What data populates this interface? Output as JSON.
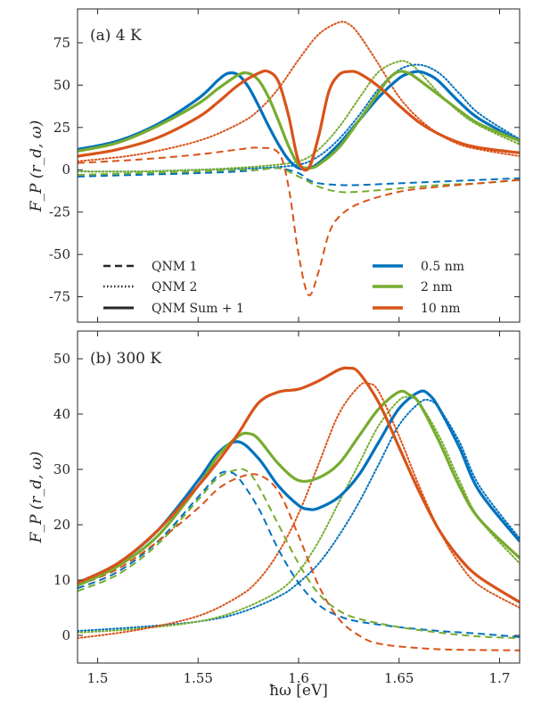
{
  "chart_data": [
    {
      "type": "line",
      "panel_label": "(a) 4 K",
      "ylabel": "F_P (r_d, ω)",
      "xlabel": "",
      "xlim": [
        1.49,
        1.71
      ],
      "ylim": [
        -90,
        95
      ],
      "xticks": [
        1.5,
        1.55,
        1.6,
        1.65,
        1.7
      ],
      "xtick_labels": [
        "",
        "",
        "",
        "",
        ""
      ],
      "yticks": [
        -75,
        -50,
        -25,
        0,
        25,
        50,
        75
      ],
      "ytick_labels": [
        "-75",
        "-50",
        "-25",
        "0",
        "25",
        "50",
        "75"
      ],
      "grid": false,
      "legend": {
        "styles": [
          {
            "label": "QNM 1",
            "dash": "dashed"
          },
          {
            "label": "QNM 2",
            "dash": "dotted"
          },
          {
            "label": "QNM Sum + 1",
            "dash": "solid"
          }
        ],
        "sizes": [
          {
            "label": "0.5 nm",
            "color": "#0072BD"
          },
          {
            "label": "2 nm",
            "color": "#77AC30"
          },
          {
            "label": "10 nm",
            "color": "#D95319"
          }
        ]
      },
      "series": [
        {
          "size": "0.5 nm",
          "style": "solid",
          "color": "#0072BD",
          "x": [
            1.49,
            1.51,
            1.53,
            1.55,
            1.56,
            1.565,
            1.57,
            1.575,
            1.58,
            1.585,
            1.59,
            1.595,
            1.6,
            1.605,
            1.61,
            1.62,
            1.63,
            1.64,
            1.65,
            1.655,
            1.66,
            1.665,
            1.67,
            1.68,
            1.69,
            1.71
          ],
          "y": [
            12,
            17,
            27,
            42,
            53,
            57,
            56,
            49,
            38,
            26,
            15,
            6,
            1,
            1,
            4,
            15,
            29,
            43,
            54,
            57,
            58,
            56,
            52,
            40,
            30,
            17
          ]
        },
        {
          "size": "2 nm",
          "style": "solid",
          "color": "#77AC30",
          "x": [
            1.49,
            1.51,
            1.53,
            1.55,
            1.56,
            1.57,
            1.575,
            1.58,
            1.585,
            1.59,
            1.595,
            1.6,
            1.605,
            1.61,
            1.62,
            1.63,
            1.64,
            1.645,
            1.65,
            1.655,
            1.66,
            1.67,
            1.68,
            1.69,
            1.71
          ],
          "y": [
            11,
            16,
            26,
            39,
            48,
            56,
            57,
            53,
            43,
            29,
            14,
            3,
            1,
            3,
            13,
            29,
            46,
            54,
            58,
            57,
            53,
            44,
            35,
            27,
            17
          ]
        },
        {
          "size": "10 nm",
          "style": "solid",
          "color": "#D95319",
          "x": [
            1.49,
            1.51,
            1.53,
            1.55,
            1.56,
            1.57,
            1.58,
            1.585,
            1.59,
            1.595,
            1.6,
            1.605,
            1.61,
            1.615,
            1.62,
            1.625,
            1.63,
            1.64,
            1.65,
            1.66,
            1.67,
            1.68,
            1.69,
            1.71
          ],
          "y": [
            8,
            12,
            19,
            31,
            40,
            50,
            57,
            58,
            52,
            32,
            5,
            1,
            20,
            46,
            56,
            58,
            57,
            49,
            38,
            28,
            21,
            16,
            13,
            10
          ]
        },
        {
          "size": "0.5 nm",
          "style": "dashed",
          "color": "#0072BD",
          "x": [
            1.49,
            1.52,
            1.55,
            1.57,
            1.58,
            1.59,
            1.6,
            1.605,
            1.61,
            1.62,
            1.63,
            1.65,
            1.67,
            1.69,
            1.71
          ],
          "y": [
            -4,
            -3,
            -2,
            -1,
            0,
            1,
            -2,
            -6,
            -8,
            -9,
            -9,
            -8,
            -7,
            -6,
            -5
          ]
        },
        {
          "size": "2 nm",
          "style": "dashed",
          "color": "#77AC30",
          "x": [
            1.49,
            1.52,
            1.55,
            1.57,
            1.58,
            1.59,
            1.6,
            1.61,
            1.62,
            1.63,
            1.65,
            1.67,
            1.69,
            1.71
          ],
          "y": [
            -3,
            -2,
            -1,
            0,
            0,
            1,
            -4,
            -10,
            -13,
            -13,
            -11,
            -9,
            -8,
            -6
          ]
        },
        {
          "size": "10 nm",
          "style": "dashed",
          "color": "#D95319",
          "x": [
            1.49,
            1.52,
            1.55,
            1.57,
            1.58,
            1.59,
            1.595,
            1.6,
            1.605,
            1.61,
            1.615,
            1.62,
            1.63,
            1.65,
            1.67,
            1.69,
            1.71
          ],
          "y": [
            4,
            6,
            9,
            12,
            13,
            10,
            -10,
            -50,
            -74,
            -60,
            -38,
            -28,
            -20,
            -13,
            -10,
            -8,
            -6
          ]
        },
        {
          "size": "0.5 nm",
          "style": "dotted",
          "color": "#0072BD",
          "x": [
            1.49,
            1.52,
            1.55,
            1.58,
            1.6,
            1.61,
            1.62,
            1.63,
            1.64,
            1.65,
            1.66,
            1.67,
            1.68,
            1.69,
            1.71
          ],
          "y": [
            -1,
            -1,
            0,
            1,
            3,
            8,
            18,
            32,
            48,
            59,
            62,
            57,
            45,
            33,
            18
          ]
        },
        {
          "size": "2 nm",
          "style": "dotted",
          "color": "#77AC30",
          "x": [
            1.49,
            1.52,
            1.55,
            1.58,
            1.6,
            1.61,
            1.62,
            1.63,
            1.64,
            1.65,
            1.655,
            1.66,
            1.67,
            1.68,
            1.69,
            1.71
          ],
          "y": [
            -1,
            -1,
            0,
            2,
            5,
            12,
            25,
            42,
            58,
            64,
            63,
            58,
            45,
            34,
            26,
            15
          ]
        },
        {
          "size": "10 nm",
          "style": "dotted",
          "color": "#D95319",
          "x": [
            1.49,
            1.52,
            1.55,
            1.57,
            1.58,
            1.59,
            1.6,
            1.61,
            1.62,
            1.625,
            1.63,
            1.64,
            1.65,
            1.66,
            1.67,
            1.68,
            1.69,
            1.71
          ],
          "y": [
            5,
            9,
            17,
            27,
            35,
            48,
            65,
            80,
            87,
            86,
            80,
            62,
            43,
            30,
            21,
            15,
            12,
            8
          ]
        }
      ]
    },
    {
      "type": "line",
      "panel_label": "(b) 300 K",
      "ylabel": "F_P (r_d, ω)",
      "xlabel": "ħω [eV]",
      "xlim": [
        1.49,
        1.71
      ],
      "ylim": [
        -5,
        55
      ],
      "xticks": [
        1.5,
        1.55,
        1.6,
        1.65,
        1.7
      ],
      "xtick_labels": [
        "1.5",
        "1.55",
        "1.6",
        "1.65",
        "1.7"
      ],
      "yticks": [
        0,
        10,
        20,
        30,
        40,
        50
      ],
      "ytick_labels": [
        "0",
        "10",
        "20",
        "30",
        "40",
        "50"
      ],
      "grid": false,
      "series": [
        {
          "size": "0.5 nm",
          "style": "solid",
          "color": "#0072BD",
          "x": [
            1.49,
            1.51,
            1.53,
            1.55,
            1.56,
            1.57,
            1.58,
            1.59,
            1.6,
            1.605,
            1.61,
            1.62,
            1.63,
            1.64,
            1.65,
            1.66,
            1.665,
            1.67,
            1.68,
            1.69,
            1.71
          ],
          "y": [
            9.5,
            13,
            19,
            28,
            33,
            35,
            32,
            27,
            23.5,
            22.8,
            23,
            25,
            29,
            35,
            41,
            44,
            43.5,
            41,
            34,
            26,
            17
          ]
        },
        {
          "size": "2 nm",
          "style": "solid",
          "color": "#77AC30",
          "x": [
            1.49,
            1.51,
            1.53,
            1.55,
            1.56,
            1.57,
            1.575,
            1.58,
            1.59,
            1.6,
            1.61,
            1.62,
            1.63,
            1.64,
            1.65,
            1.655,
            1.66,
            1.67,
            1.68,
            1.69,
            1.71
          ],
          "y": [
            9,
            12.5,
            18,
            27,
            32.5,
            36,
            36.5,
            35.5,
            31,
            28,
            28.5,
            31,
            36,
            41,
            44,
            43.5,
            42,
            35,
            27,
            21,
            14
          ]
        },
        {
          "size": "10 nm",
          "style": "solid",
          "color": "#D95319",
          "x": [
            1.49,
            1.51,
            1.53,
            1.55,
            1.56,
            1.57,
            1.58,
            1.59,
            1.6,
            1.61,
            1.62,
            1.625,
            1.63,
            1.64,
            1.65,
            1.66,
            1.67,
            1.68,
            1.69,
            1.71
          ],
          "y": [
            9.5,
            13,
            19,
            27,
            31.5,
            36.5,
            42,
            44,
            44.5,
            46,
            48,
            48.3,
            47.5,
            42,
            34,
            26,
            19,
            14,
            10.5,
            6
          ]
        },
        {
          "size": "0.5 nm",
          "style": "dashed",
          "color": "#0072BD",
          "x": [
            1.49,
            1.51,
            1.53,
            1.55,
            1.56,
            1.565,
            1.57,
            1.58,
            1.59,
            1.6,
            1.61,
            1.62,
            1.63,
            1.65,
            1.67,
            1.69,
            1.71
          ],
          "y": [
            8.5,
            11.5,
            17,
            25,
            29,
            29.5,
            28.5,
            23,
            15.5,
            9.5,
            5.5,
            3.5,
            2.5,
            1.5,
            0.8,
            0.3,
            -0.3
          ]
        },
        {
          "size": "2 nm",
          "style": "dashed",
          "color": "#77AC30",
          "x": [
            1.49,
            1.51,
            1.53,
            1.55,
            1.56,
            1.57,
            1.575,
            1.58,
            1.59,
            1.6,
            1.61,
            1.62,
            1.63,
            1.65,
            1.67,
            1.69,
            1.71
          ],
          "y": [
            8,
            11,
            16.5,
            24.5,
            28.5,
            30,
            29.5,
            27,
            20,
            13,
            7.5,
            4.5,
            3,
            1.5,
            0.5,
            -0.2,
            -0.5
          ]
        },
        {
          "size": "10 nm",
          "style": "dashed",
          "color": "#D95319",
          "x": [
            1.49,
            1.51,
            1.53,
            1.55,
            1.56,
            1.57,
            1.58,
            1.59,
            1.6,
            1.61,
            1.62,
            1.63,
            1.64,
            1.66,
            1.68,
            1.71
          ],
          "y": [
            9,
            12,
            17,
            23,
            26.5,
            28.5,
            29,
            26,
            18,
            9,
            3,
            0,
            -1.5,
            -2.3,
            -2.6,
            -2.7
          ]
        },
        {
          "size": "0.5 nm",
          "style": "dotted",
          "color": "#0072BD",
          "x": [
            1.49,
            1.52,
            1.55,
            1.57,
            1.59,
            1.6,
            1.61,
            1.62,
            1.63,
            1.64,
            1.65,
            1.66,
            1.665,
            1.67,
            1.68,
            1.69,
            1.71
          ],
          "y": [
            0.8,
            1.5,
            2.5,
            4,
            7,
            9.5,
            13,
            18,
            24,
            31,
            38,
            42,
            42.5,
            41,
            35,
            27,
            17.5
          ]
        },
        {
          "size": "2 nm",
          "style": "dotted",
          "color": "#77AC30",
          "x": [
            1.49,
            1.52,
            1.55,
            1.57,
            1.59,
            1.6,
            1.61,
            1.62,
            1.63,
            1.64,
            1.65,
            1.655,
            1.66,
            1.67,
            1.68,
            1.69,
            1.71
          ],
          "y": [
            0.5,
            1.2,
            2.5,
            4.5,
            8,
            11.5,
            17,
            24,
            31,
            38,
            42.5,
            43,
            42,
            36,
            28,
            21,
            13
          ]
        },
        {
          "size": "10 nm",
          "style": "dotted",
          "color": "#D95319",
          "x": [
            1.49,
            1.52,
            1.55,
            1.57,
            1.58,
            1.59,
            1.6,
            1.61,
            1.62,
            1.63,
            1.635,
            1.64,
            1.65,
            1.66,
            1.67,
            1.68,
            1.69,
            1.71
          ],
          "y": [
            -0.5,
            1,
            3.5,
            7,
            10,
            15,
            22,
            31,
            40,
            45,
            45.5,
            44,
            36,
            27,
            19,
            13,
            9,
            5
          ]
        }
      ]
    }
  ]
}
